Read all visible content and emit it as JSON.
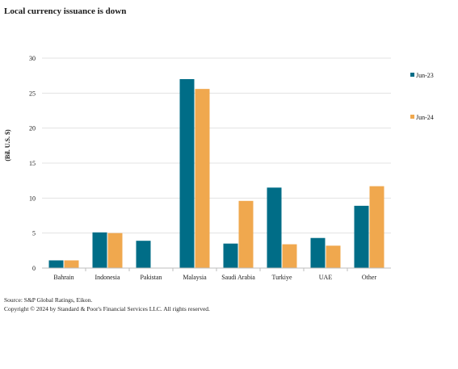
{
  "title": "Local currency issuance is down",
  "chart_data": {
    "type": "bar",
    "categories": [
      "Bahrain",
      "Indonesia",
      "Pakistan",
      "Malaysia",
      "Saudi Arabia",
      "Turkiye",
      "UAE",
      "Other"
    ],
    "series": [
      {
        "name": "Jun-23",
        "color": "#006d87",
        "values": [
          1.1,
          5.1,
          3.9,
          27.0,
          3.5,
          11.5,
          4.3,
          8.9
        ]
      },
      {
        "name": "Jun-24",
        "color": "#f0a84e",
        "values": [
          1.1,
          5.0,
          0.0,
          25.6,
          9.6,
          3.4,
          3.2,
          11.7
        ]
      }
    ],
    "ylabel": "(Bil. U.S. $)",
    "xlabel": "",
    "ylim": [
      0,
      30
    ],
    "yticks": [
      0,
      5,
      10,
      15,
      20,
      25,
      30
    ],
    "grid": true,
    "legend_position": "right"
  },
  "source_lines": [
    "Source: S&P Global Ratings, Eikon.",
    "Copyright © 2024 by Standard & Poor's Financial Services LLC. All rights reserved."
  ]
}
